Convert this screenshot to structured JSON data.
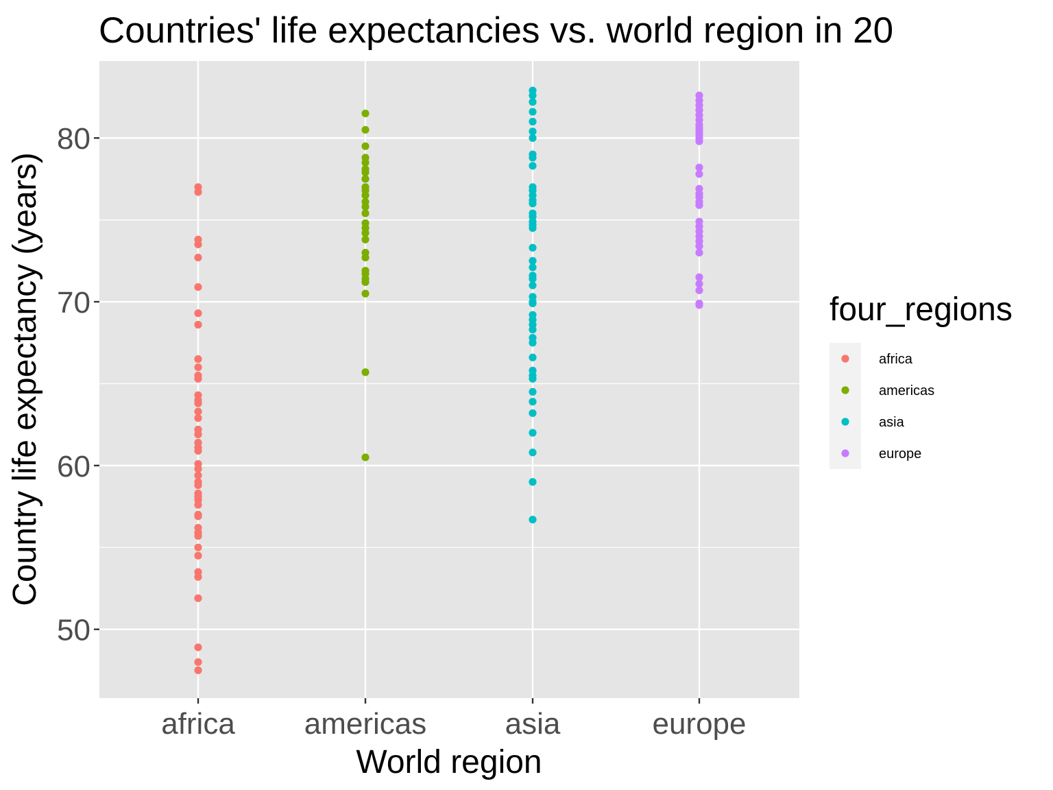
{
  "chart_data": {
    "type": "scatter",
    "title": "Countries' life expectancies vs. world region in 20",
    "xlabel": "World region",
    "ylabel": "Country life expectancy (years)",
    "categories": [
      "africa",
      "americas",
      "asia",
      "europe"
    ],
    "yticks": [
      50,
      60,
      70,
      80
    ],
    "ylim": [
      45.8,
      84.7
    ],
    "grid": true,
    "legend": {
      "title": "four_regions",
      "position": "right",
      "entries": [
        "africa",
        "americas",
        "asia",
        "europe"
      ]
    },
    "colors": {
      "africa": "#F8766D",
      "americas": "#7CAE00",
      "asia": "#00BFC4",
      "europe": "#C77CFF",
      "panel": "#E5E5E5",
      "grid": "#FFFFFF",
      "legend_bg": "#F2F2F2"
    },
    "series": [
      {
        "name": "africa",
        "category": "africa",
        "values": [
          77.0,
          76.7,
          73.8,
          73.5,
          72.7,
          70.9,
          69.3,
          68.6,
          66.5,
          66.0,
          65.5,
          65.3,
          64.3,
          64.0,
          63.8,
          63.3,
          62.9,
          62.2,
          61.9,
          61.4,
          61.1,
          60.9,
          60.1,
          59.8,
          59.4,
          59.0,
          58.8,
          58.3,
          58.1,
          57.9,
          57.6,
          57.0,
          56.9,
          56.2,
          55.9,
          55.7,
          55.0,
          54.5,
          53.5,
          53.2,
          51.9,
          48.9,
          48.0,
          47.5
        ]
      },
      {
        "name": "americas",
        "category": "americas",
        "values": [
          81.5,
          80.5,
          79.5,
          78.8,
          78.5,
          78.1,
          77.9,
          77.5,
          77.0,
          76.8,
          76.5,
          76.1,
          75.8,
          75.4,
          74.8,
          74.5,
          74.2,
          73.8,
          73.0,
          72.7,
          71.9,
          71.7,
          71.4,
          71.2,
          70.5,
          65.7,
          60.5
        ]
      },
      {
        "name": "asia",
        "category": "asia",
        "values": [
          82.9,
          82.6,
          82.2,
          81.6,
          81.0,
          80.4,
          80.0,
          79.0,
          78.8,
          78.3,
          77.0,
          76.8,
          76.5,
          76.2,
          76.0,
          75.4,
          75.2,
          74.9,
          74.7,
          74.5,
          73.3,
          72.5,
          72.1,
          71.6,
          71.4,
          71.0,
          70.3,
          70.0,
          69.9,
          69.2,
          68.9,
          68.6,
          68.3,
          67.8,
          67.5,
          66.6,
          65.8,
          65.5,
          65.3,
          64.5,
          63.9,
          63.2,
          62.0,
          60.8,
          59.0,
          56.7
        ]
      },
      {
        "name": "europe",
        "category": "europe",
        "values": [
          82.6,
          82.3,
          82.0,
          81.7,
          81.4,
          81.1,
          80.8,
          80.6,
          80.4,
          80.2,
          80.0,
          79.8,
          78.2,
          77.8,
          76.9,
          76.6,
          76.4,
          76.1,
          75.9,
          74.9,
          74.6,
          74.3,
          74.0,
          73.7,
          73.4,
          73.0,
          71.5,
          71.1,
          70.7,
          69.9,
          69.8
        ]
      }
    ]
  }
}
